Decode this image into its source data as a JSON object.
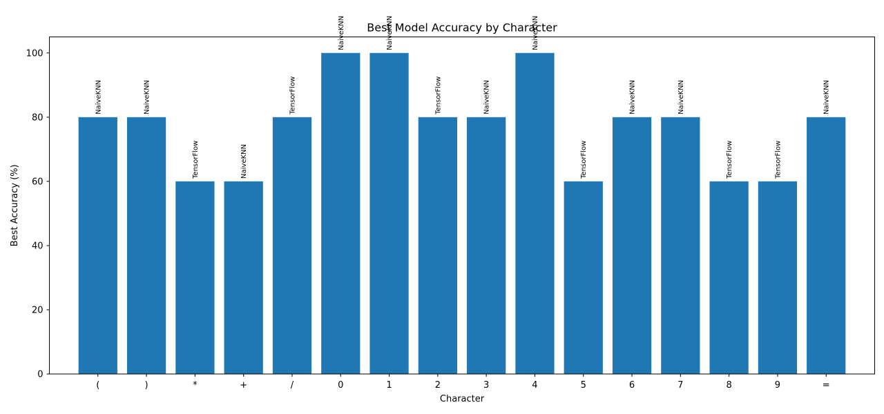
{
  "chart_data": {
    "type": "bar",
    "title": "Best Model Accuracy by Character",
    "xlabel": "Character",
    "ylabel": "Best Accuracy (%)",
    "ylim": [
      0,
      105
    ],
    "yticks": [
      0,
      20,
      40,
      60,
      80,
      100
    ],
    "grid": false,
    "categories": [
      "(",
      ")",
      "*",
      "+",
      "/",
      "0",
      "1",
      "2",
      "3",
      "4",
      "5",
      "6",
      "7",
      "8",
      "9",
      "="
    ],
    "values": [
      80,
      80,
      60,
      60,
      80,
      100,
      100,
      80,
      80,
      100,
      60,
      80,
      80,
      60,
      60,
      80
    ],
    "bar_labels": [
      "NaiveKNN",
      "NaiveKNN",
      "TensorFlow",
      "NaiveKNN",
      "TensorFlow",
      "NaiveKNN",
      "NaiveKNN",
      "TensorFlow",
      "NaiveKNN",
      "NaiveKNN",
      "TensorFlow",
      "NaiveKNN",
      "NaiveKNN",
      "TensorFlow",
      "TensorFlow",
      "NaiveKNN"
    ],
    "bar_color": "#1f77b4"
  }
}
